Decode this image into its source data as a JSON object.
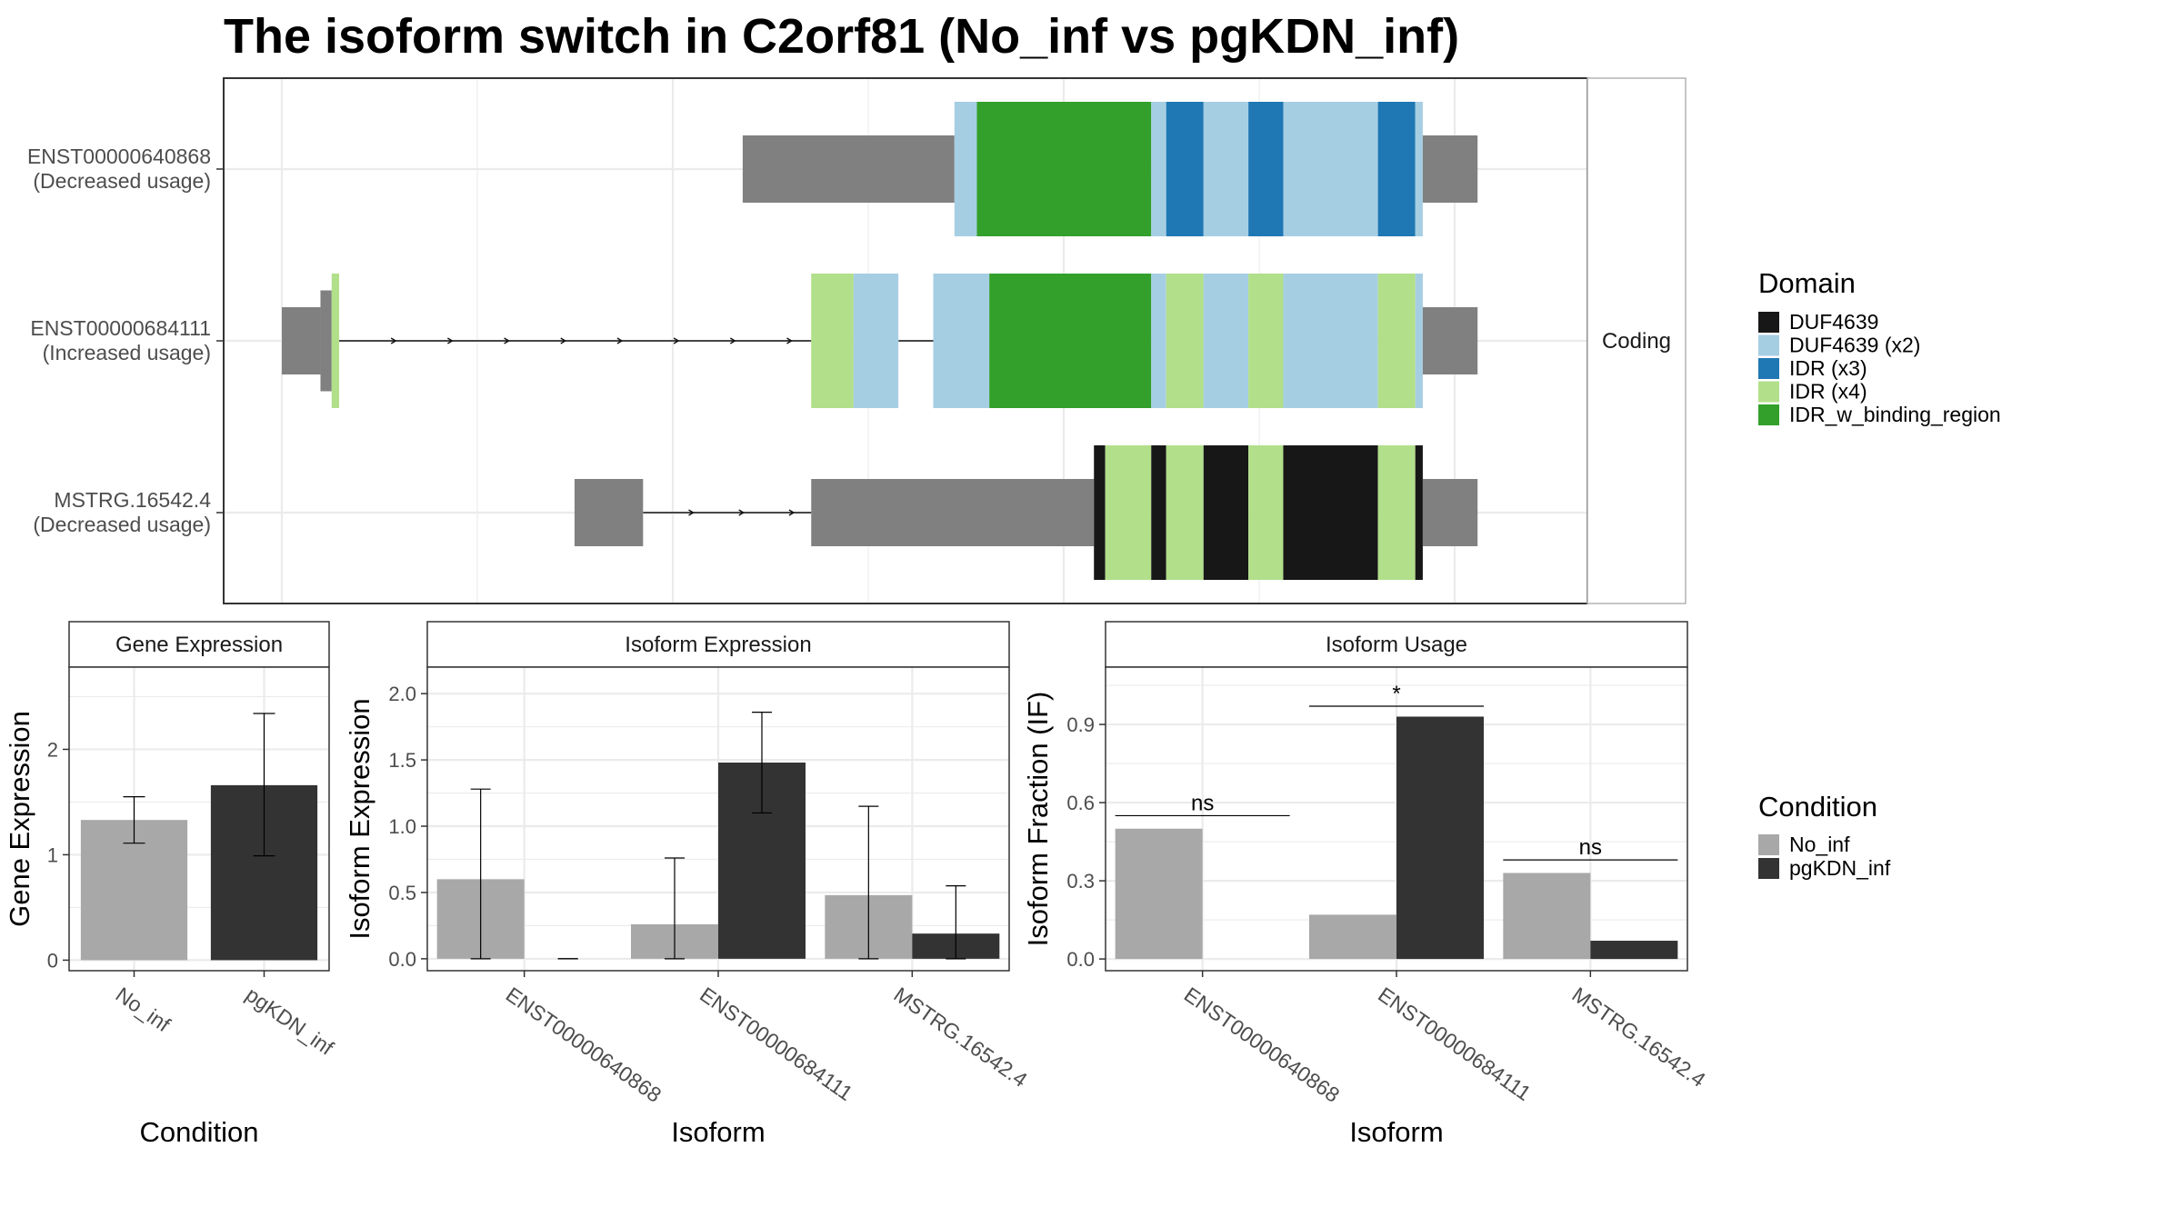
{
  "title": "The isoform switch in C2orf81 (No_inf vs pgKDN_inf)",
  "colors": {
    "no_inf": "#a8a8a8",
    "pgkdn_inf": "#333333",
    "utr": "#808080",
    "grid": "#ebebeb",
    "DUF4639": "#171717",
    "DUF4639 (x2)": "#a6cee3",
    "IDR (x3)": "#1f78b4",
    "IDR (x4)": "#b2df8a",
    "IDR_w_binding_region": "#33a02c"
  },
  "chart_data": [
    {
      "type": "gene-structure",
      "facet_label": "Coding",
      "transcripts": [
        {
          "id": "ENST00000640868",
          "usage": "(Decreased usage)"
        },
        {
          "id": "ENST00000684111",
          "usage": "(Increased usage)"
        },
        {
          "id": "MSTRG.16542.4",
          "usage": "(Decreased usage)"
        }
      ],
      "legend": {
        "title": "Domain",
        "items": [
          "DUF4639",
          "DUF4639 (x2)",
          "IDR (x3)",
          "IDR (x4)",
          "IDR_w_binding_region"
        ]
      },
      "x_range": [
        0,
        1000
      ],
      "features": [
        [
          {
            "start": 370,
            "end": 540,
            "kind": "utr"
          },
          {
            "start": 540,
            "end": 558,
            "kind": "DUF4639 (x2)"
          },
          {
            "start": 558,
            "end": 698,
            "kind": "IDR_w_binding_region"
          },
          {
            "start": 698,
            "end": 710,
            "kind": "DUF4639 (x2)"
          },
          {
            "start": 710,
            "end": 740,
            "kind": "IDR (x3)"
          },
          {
            "start": 740,
            "end": 776,
            "kind": "DUF4639 (x2)"
          },
          {
            "start": 776,
            "end": 804,
            "kind": "IDR (x3)"
          },
          {
            "start": 804,
            "end": 880,
            "kind": "DUF4639 (x2)"
          },
          {
            "start": 880,
            "end": 910,
            "kind": "IDR (x3)"
          },
          {
            "start": 910,
            "end": 916,
            "kind": "DUF4639 (x2)"
          },
          {
            "start": 916,
            "end": 960,
            "kind": "utr"
          }
        ],
        [
          {
            "start": 0,
            "end": 31,
            "kind": "utr"
          },
          {
            "start": 31,
            "end": 40,
            "kind": "utr_cds"
          },
          {
            "start": 40,
            "end": 46,
            "kind": "IDR (x4)"
          },
          {
            "start": 425,
            "end": 459,
            "kind": "IDR (x4)"
          },
          {
            "start": 459,
            "end": 495,
            "kind": "DUF4639 (x2)"
          },
          {
            "start": 523,
            "end": 568,
            "kind": "DUF4639 (x2)"
          },
          {
            "start": 568,
            "end": 698,
            "kind": "IDR_w_binding_region"
          },
          {
            "start": 698,
            "end": 710,
            "kind": "DUF4639 (x2)"
          },
          {
            "start": 710,
            "end": 740,
            "kind": "IDR (x4)"
          },
          {
            "start": 740,
            "end": 776,
            "kind": "DUF4639 (x2)"
          },
          {
            "start": 776,
            "end": 804,
            "kind": "IDR (x4)"
          },
          {
            "start": 804,
            "end": 880,
            "kind": "DUF4639 (x2)"
          },
          {
            "start": 880,
            "end": 910,
            "kind": "IDR (x4)"
          },
          {
            "start": 910,
            "end": 916,
            "kind": "DUF4639 (x2)"
          },
          {
            "start": 916,
            "end": 960,
            "kind": "utr"
          }
        ],
        [
          {
            "start": 235,
            "end": 290,
            "kind": "utr"
          },
          {
            "start": 425,
            "end": 652,
            "kind": "utr"
          },
          {
            "start": 652,
            "end": 661,
            "kind": "DUF4639"
          },
          {
            "start": 661,
            "end": 698,
            "kind": "IDR (x4)"
          },
          {
            "start": 698,
            "end": 710,
            "kind": "DUF4639"
          },
          {
            "start": 710,
            "end": 740,
            "kind": "IDR (x4)"
          },
          {
            "start": 740,
            "end": 776,
            "kind": "DUF4639"
          },
          {
            "start": 776,
            "end": 804,
            "kind": "IDR (x4)"
          },
          {
            "start": 804,
            "end": 880,
            "kind": "DUF4639"
          },
          {
            "start": 880,
            "end": 910,
            "kind": "IDR (x4)"
          },
          {
            "start": 910,
            "end": 916,
            "kind": "DUF4639"
          },
          {
            "start": 916,
            "end": 960,
            "kind": "utr"
          }
        ]
      ],
      "introns": [
        [],
        [
          {
            "start": 46,
            "end": 425,
            "arrows": true
          },
          {
            "start": 495,
            "end": 523,
            "arrows": false
          }
        ],
        [
          {
            "start": 290,
            "end": 425,
            "arrows": true
          }
        ]
      ]
    },
    {
      "type": "bar",
      "strip_label": "Gene Expression",
      "xlabel": "Condition",
      "ylabel": "Gene Expression",
      "ylim": [
        -0.1,
        2.78
      ],
      "yticks": [
        0,
        1,
        2
      ],
      "ytick_labels": [
        "0",
        "1",
        "2"
      ],
      "categories": [
        "No_inf",
        "pgKDN_inf"
      ],
      "values": [
        1.33,
        1.66
      ],
      "error_low": [
        1.11,
        0.99
      ],
      "error_high": [
        1.55,
        2.34
      ]
    },
    {
      "type": "bar",
      "strip_label": "Isoform Expression",
      "xlabel": "Isoform",
      "ylabel": "Isoform Expression",
      "ylim": [
        -0.09,
        2.2
      ],
      "yticks": [
        0,
        0.5,
        1,
        1.5,
        2
      ],
      "ytick_labels": [
        "0.0",
        "0.5",
        "1.0",
        "1.5",
        "2.0"
      ],
      "categories": [
        "ENST00000640868",
        "ENST00000684111",
        "MSTRG.16542.4"
      ],
      "series": [
        {
          "name": "No_inf",
          "values": [
            0.6,
            0.26,
            0.48
          ],
          "error_low": [
            0.0,
            0.0,
            0.0
          ],
          "error_high": [
            1.28,
            0.76,
            1.15
          ]
        },
        {
          "name": "pgKDN_inf",
          "values": [
            0.0,
            1.48,
            0.19
          ],
          "error_low": [
            0.0,
            1.1,
            0.0
          ],
          "error_high": [
            0.0,
            1.86,
            0.55
          ]
        }
      ]
    },
    {
      "type": "bar",
      "strip_label": "Isoform Usage",
      "xlabel": "Isoform",
      "ylabel": "Isoform Fraction (IF)",
      "ylim": [
        -0.045,
        1.12
      ],
      "yticks": [
        0,
        0.3,
        0.6,
        0.9
      ],
      "ytick_labels": [
        "0.0",
        "0.3",
        "0.6",
        "0.9"
      ],
      "categories": [
        "ENST00000640868",
        "ENST00000684111",
        "MSTRG.16542.4"
      ],
      "series": [
        {
          "name": "No_inf",
          "values": [
            0.5,
            0.17,
            0.33
          ]
        },
        {
          "name": "pgKDN_inf",
          "values": [
            0.0,
            0.93,
            0.07
          ]
        }
      ],
      "significance": [
        {
          "label": "ns",
          "y": 0.55
        },
        {
          "label": "*",
          "y": 0.97
        },
        {
          "label": "ns",
          "y": 0.38
        }
      ]
    }
  ],
  "condition_legend": {
    "title": "Condition",
    "items": [
      "No_inf",
      "pgKDN_inf"
    ]
  }
}
